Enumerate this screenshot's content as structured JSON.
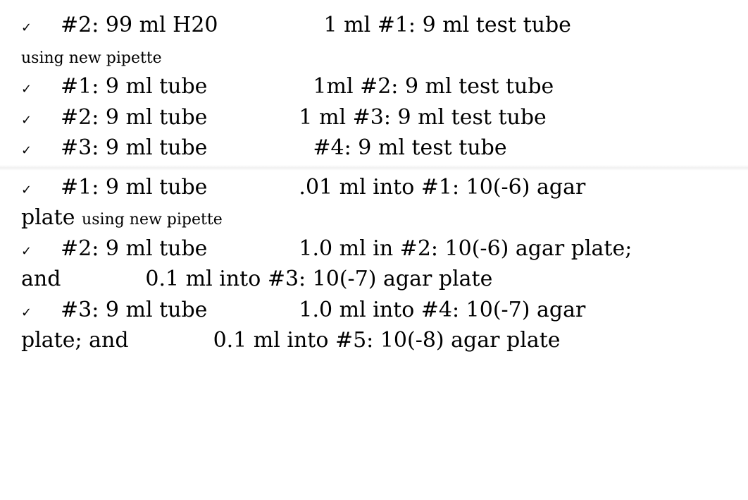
{
  "doc": {
    "font_family": "serif",
    "font_size_pt": 30,
    "small_font_size_pt": 22,
    "check_font_size_pt": 18,
    "text_color": "#000000",
    "background_color": "#ffffff",
    "checkmark": "✓",
    "note_new_pipette": "using new pipette",
    "items": [
      {
        "left": "#2: 99 ml H20",
        "right": "1 ml #1: 9 ml test   tube",
        "note_after": true
      },
      {
        "left": "#1: 9 ml tube",
        "right": "1ml #2: 9 ml test tube"
      },
      {
        "left": "#2: 9 ml tube",
        "right": "1 ml #3: 9 ml test tube"
      },
      {
        "left": "#3: 9 ml tube",
        "right": "#4: 9 ml test tube"
      }
    ],
    "items2": [
      {
        "left": "#1: 9 ml tube",
        "right": ".01 ml into #1: 10(-6) agar",
        "cont": "plate ",
        "note_after": true
      },
      {
        "left": "#2: 9 ml tube",
        "right": "1.0 ml in #2: 10(-6) agar plate;",
        "cont": "and",
        "cont2": "0.1 ml into #3: 10(-7) agar plate"
      },
      {
        "left": "#3: 9 ml tube",
        "right": "1.0 ml into #4: 10(-7) agar",
        "cont": "plate; and",
        "cont2": "0.1 ml into #5: 10(-8) agar plate"
      }
    ]
  }
}
